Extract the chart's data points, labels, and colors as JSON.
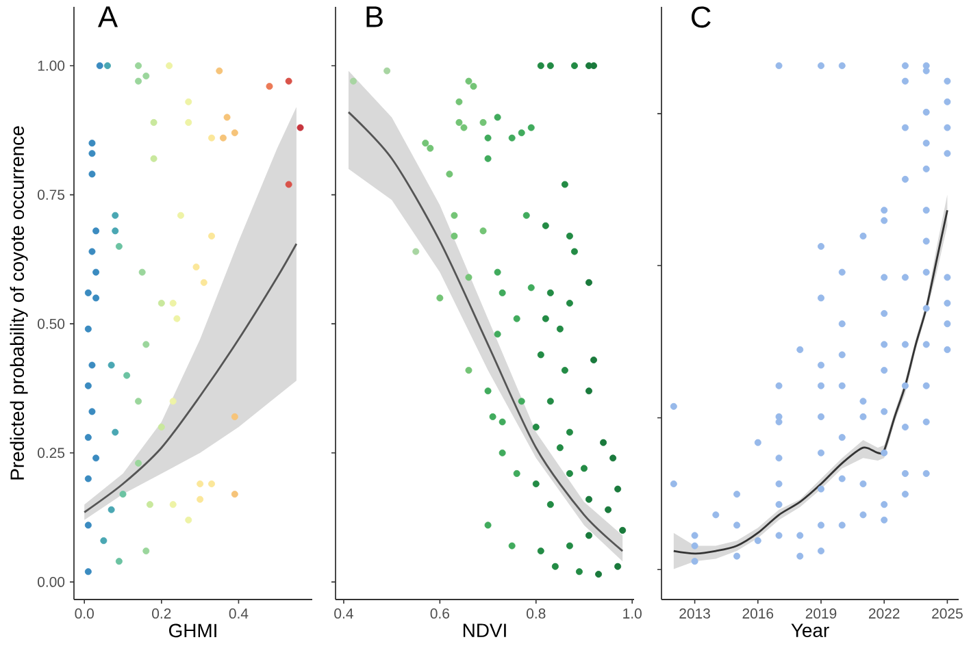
{
  "chart_data": [
    {
      "type": "scatter",
      "title": "A",
      "xlabel": "GHMI",
      "ylabel": "Predicted probability of coyote occurrence",
      "xlim": [
        -0.027,
        0.591
      ],
      "ylim": [
        -0.034,
        1.114
      ],
      "xticks": [
        {
          "value": 0,
          "label": "0.0"
        },
        0.2,
        0.4
      ],
      "yticks": [
        {
          "value": 0,
          "label": "0.00"
        },
        {
          "value": 0.25,
          "label": "0.25"
        },
        {
          "value": 0.5,
          "label": "0.50"
        },
        {
          "value": 0.75,
          "label": "0.75"
        },
        {
          "value": 1,
          "label": "1.00"
        }
      ],
      "series": [
        {
          "x": [
            0.04,
            0.06,
            0.14,
            0.16,
            0.14,
            0.22,
            0.35,
            0.48,
            0.53,
            0.56,
            0.53,
            0.37,
            0.39,
            0.36,
            0.33,
            0.27,
            0.27,
            0.18,
            0.18,
            0.02,
            0.02,
            0.02,
            0.03,
            0.02,
            0.03,
            0.01,
            0.03,
            0.01,
            0.08,
            0.09,
            0.08,
            0.25,
            0.15,
            0.2,
            0.29,
            0.33,
            0.31,
            0.24,
            0.23,
            0.02,
            0.01,
            0.02,
            0.07,
            0.11,
            0.16,
            0.23,
            0.2,
            0.14,
            0.3,
            0.33,
            0.39,
            0.39,
            0.3,
            0.27,
            0.23,
            0.01,
            0.01,
            0.01,
            0.01,
            0.03,
            0.05,
            0.09,
            0.1,
            0.14,
            0.17,
            0.16,
            0.08,
            0.07
          ],
          "values": [
            1.0,
            1.0,
            1.0,
            0.98,
            0.97,
            1.0,
            0.99,
            0.96,
            0.97,
            0.88,
            0.77,
            0.9,
            0.87,
            0.86,
            0.86,
            0.93,
            0.89,
            0.89,
            0.82,
            0.85,
            0.83,
            0.79,
            0.68,
            0.64,
            0.6,
            0.56,
            0.55,
            0.49,
            0.68,
            0.65,
            0.71,
            0.71,
            0.6,
            0.54,
            0.61,
            0.67,
            0.58,
            0.51,
            0.54,
            0.42,
            0.38,
            0.33,
            0.42,
            0.4,
            0.46,
            0.35,
            0.3,
            0.35,
            0.19,
            0.19,
            0.32,
            0.17,
            0.16,
            0.12,
            0.15,
            0.28,
            0.2,
            0.11,
            0.02,
            0.24,
            0.08,
            0.04,
            0.17,
            0.23,
            0.15,
            0.06,
            0.29,
            0.14
          ],
          "colors": [
            "#3b8bc0",
            "#4aa7b3",
            "#9bd69c",
            "#9bd69c",
            "#9bd69c",
            "#eef3a6",
            "#f6c47a",
            "#ec7a57",
            "#d9534a",
            "#c7363e",
            "#d9534a",
            "#f6c47a",
            "#f6c47a",
            "#f6c47a",
            "#fbe79a",
            "#eef3a6",
            "#eef3a6",
            "#c9e89d",
            "#c9e89d",
            "#3b8bc0",
            "#3b8bc0",
            "#3b8bc0",
            "#3b8bc0",
            "#3b8bc0",
            "#3b8bc0",
            "#3b8bc0",
            "#3b8bc0",
            "#3b8bc0",
            "#4aa7b3",
            "#6cc3a2",
            "#4aa7b3",
            "#eef3a6",
            "#9bd69c",
            "#c9e89d",
            "#fbe79a",
            "#fbe79a",
            "#fbe79a",
            "#eef3a6",
            "#eef3a6",
            "#3b8bc0",
            "#3b8bc0",
            "#3b8bc0",
            "#4aa7b3",
            "#6cc3a2",
            "#9bd69c",
            "#eef3a6",
            "#c9e89d",
            "#9bd69c",
            "#fbe79a",
            "#fbe79a",
            "#f6c47a",
            "#f6c47a",
            "#fbe79a",
            "#eef3a6",
            "#eef3a6",
            "#3b8bc0",
            "#3b8bc0",
            "#3b8bc0",
            "#3b8bc0",
            "#3b8bc0",
            "#4aa7b3",
            "#6cc3a2",
            "#6cc3a2",
            "#9bd69c",
            "#c9e89d",
            "#9bd69c",
            "#4aa7b3",
            "#4aa7b3"
          ]
        },
        {
          "type": "line",
          "color": "#555555",
          "x": [
            0,
            0.1,
            0.2,
            0.3,
            0.4,
            0.5,
            0.55
          ],
          "values": [
            0.135,
            0.19,
            0.26,
            0.36,
            0.47,
            0.59,
            0.655
          ],
          "lower": [
            0.12,
            0.17,
            0.21,
            0.25,
            0.3,
            0.36,
            0.39
          ],
          "upper": [
            0.15,
            0.21,
            0.31,
            0.47,
            0.66,
            0.84,
            0.92
          ]
        }
      ]
    },
    {
      "type": "scatter",
      "title": "B",
      "xlabel": "NDVI",
      "xlim": [
        0.383,
        1.004
      ],
      "ylim": [
        -0.034,
        1.114
      ],
      "xticks": [
        0.4,
        0.6,
        0.8,
        {
          "value": 1,
          "label": "1.0"
        }
      ],
      "yticks": [
        0,
        0.25,
        0.5,
        0.75,
        1
      ],
      "tick_labels": "x",
      "series": [
        {
          "x": [
            0.81,
            0.83,
            0.88,
            0.91,
            0.92,
            0.42,
            0.49,
            0.66,
            0.67,
            0.64,
            0.64,
            0.65,
            0.72,
            0.69,
            0.77,
            0.79,
            0.75,
            0.7,
            0.7,
            0.57,
            0.58,
            0.62,
            0.86,
            0.63,
            0.63,
            0.55,
            0.66,
            0.6,
            0.69,
            0.78,
            0.82,
            0.87,
            0.88,
            0.91,
            0.72,
            0.73,
            0.79,
            0.83,
            0.76,
            0.72,
            0.82,
            0.87,
            0.66,
            0.7,
            0.71,
            0.73,
            0.77,
            0.85,
            0.81,
            0.86,
            0.92,
            0.91,
            0.83,
            0.8,
            0.87,
            0.94,
            0.96,
            0.73,
            0.76,
            0.8,
            0.7,
            0.75,
            0.81,
            0.83,
            0.87,
            0.91,
            0.95,
            0.98,
            0.97,
            0.84,
            0.89,
            0.93,
            0.87,
            0.91,
            0.9,
            0.85,
            0.97
          ],
          "values": [
            1.0,
            1.0,
            1.0,
            1.0,
            1.0,
            0.97,
            0.99,
            0.97,
            0.96,
            0.93,
            0.89,
            0.88,
            0.9,
            0.89,
            0.87,
            0.88,
            0.86,
            0.86,
            0.82,
            0.85,
            0.84,
            0.79,
            0.77,
            0.71,
            0.67,
            0.64,
            0.59,
            0.55,
            0.68,
            0.71,
            0.69,
            0.67,
            0.64,
            0.58,
            0.6,
            0.56,
            0.57,
            0.56,
            0.51,
            0.48,
            0.51,
            0.54,
            0.41,
            0.37,
            0.32,
            0.31,
            0.35,
            0.49,
            0.44,
            0.41,
            0.43,
            0.37,
            0.35,
            0.3,
            0.29,
            0.27,
            0.24,
            0.25,
            0.21,
            0.19,
            0.11,
            0.07,
            0.06,
            0.15,
            0.21,
            0.16,
            0.14,
            0.1,
            0.03,
            0.03,
            0.02,
            0.015,
            0.07,
            0.09,
            0.22,
            0.26,
            0.18
          ],
          "colors": [
            "#238b45",
            "#238b45",
            "#238b45",
            "#1a7a3c",
            "#1a7a3c",
            "#a8d5a2",
            "#a8d5a2",
            "#74c476",
            "#74c476",
            "#74c476",
            "#74c476",
            "#74c476",
            "#41ab5d",
            "#74c476",
            "#41ab5d",
            "#41ab5d",
            "#41ab5d",
            "#41ab5d",
            "#41ab5d",
            "#74c476",
            "#74c476",
            "#74c476",
            "#238b45",
            "#74c476",
            "#74c476",
            "#a8d5a2",
            "#74c476",
            "#74c476",
            "#74c476",
            "#41ab5d",
            "#238b45",
            "#238b45",
            "#238b45",
            "#1a7a3c",
            "#41ab5d",
            "#41ab5d",
            "#41ab5d",
            "#238b45",
            "#41ab5d",
            "#41ab5d",
            "#238b45",
            "#238b45",
            "#74c476",
            "#41ab5d",
            "#41ab5d",
            "#41ab5d",
            "#41ab5d",
            "#238b45",
            "#238b45",
            "#238b45",
            "#1a7a3c",
            "#1a7a3c",
            "#238b45",
            "#238b45",
            "#238b45",
            "#1a7a3c",
            "#1a7a3c",
            "#41ab5d",
            "#41ab5d",
            "#238b45",
            "#41ab5d",
            "#41ab5d",
            "#238b45",
            "#238b45",
            "#238b45",
            "#1a7a3c",
            "#1a7a3c",
            "#1a7a3c",
            "#1a7a3c",
            "#238b45",
            "#238b45",
            "#1a7a3c",
            "#238b45",
            "#1a7a3c",
            "#238b45",
            "#238b45",
            "#1a7a3c"
          ]
        },
        {
          "type": "line",
          "color": "#555555",
          "x": [
            0.41,
            0.5,
            0.6,
            0.7,
            0.8,
            0.9,
            0.98
          ],
          "values": [
            0.91,
            0.82,
            0.66,
            0.46,
            0.26,
            0.13,
            0.06
          ],
          "lower": [
            0.8,
            0.74,
            0.6,
            0.41,
            0.24,
            0.11,
            0.04
          ],
          "upper": [
            0.99,
            0.9,
            0.73,
            0.51,
            0.29,
            0.155,
            0.09
          ]
        }
      ]
    },
    {
      "type": "scatter",
      "title": "C",
      "xlabel": "Year",
      "xlim": [
        2011.42,
        2025.54
      ],
      "ylim": [
        -0.034,
        1.114
      ],
      "xticks": [
        2013,
        2016,
        2019,
        2022,
        2025
      ],
      "yticks": [
        {
          "value": 0.024,
          "label": null
        },
        {
          "value": 0.318,
          "label": null
        },
        {
          "value": 0.613,
          "label": null
        },
        {
          "value": 0.907,
          "label": null
        }
      ],
      "tick_labels": "x",
      "series": [
        {
          "color": "#97b9ea",
          "x": [
            2012,
            2012,
            2013,
            2013,
            2013,
            2014,
            2015,
            2015,
            2015,
            2016,
            2016,
            2017,
            2017,
            2017,
            2017,
            2017,
            2017,
            2017,
            2017,
            2018,
            2018,
            2018,
            2019,
            2019,
            2019,
            2019,
            2019,
            2019,
            2019,
            2019,
            2019,
            2019,
            2020,
            2020,
            2020,
            2020,
            2020,
            2020,
            2020,
            2020,
            2021,
            2021,
            2021,
            2021,
            2021,
            2022,
            2022,
            2022,
            2022,
            2022,
            2022,
            2022,
            2022,
            2022,
            2022,
            2023,
            2023,
            2023,
            2023,
            2023,
            2023,
            2023,
            2023,
            2023,
            2023,
            2024,
            2024,
            2024,
            2024,
            2024,
            2024,
            2024,
            2024,
            2024,
            2024,
            2024,
            2024,
            2024,
            2025,
            2025,
            2025,
            2025,
            2025,
            2025,
            2025,
            2025
          ],
          "values": [
            0.34,
            0.19,
            0.09,
            0.07,
            0.04,
            0.13,
            0.17,
            0.11,
            0.05,
            0.27,
            0.08,
            1.0,
            0.38,
            0.32,
            0.31,
            0.24,
            0.19,
            0.15,
            0.09,
            0.45,
            0.09,
            0.05,
            1.0,
            0.65,
            0.55,
            0.42,
            0.38,
            0.32,
            0.25,
            0.18,
            0.11,
            0.06,
            1.0,
            0.6,
            0.5,
            0.44,
            0.38,
            0.28,
            0.2,
            0.11,
            0.67,
            0.35,
            0.32,
            0.19,
            0.13,
            0.72,
            0.7,
            0.59,
            0.52,
            0.46,
            0.41,
            0.33,
            0.25,
            0.15,
            0.12,
            1.0,
            0.97,
            0.88,
            0.78,
            0.59,
            0.46,
            0.38,
            0.3,
            0.21,
            0.17,
            1.0,
            0.99,
            0.91,
            0.85,
            0.8,
            0.72,
            0.66,
            0.6,
            0.53,
            0.46,
            0.38,
            0.31,
            0.21,
            0.97,
            0.93,
            0.88,
            0.83,
            0.59,
            0.54,
            0.5,
            0.45
          ]
        },
        {
          "type": "line",
          "color": "#333333",
          "x": [
            2012,
            2013,
            2014,
            2015,
            2016,
            2017,
            2018,
            2019,
            2020,
            2021,
            2021.7,
            2022,
            2022.5,
            2023,
            2023.5,
            2024,
            2024.5,
            2025
          ],
          "values": [
            0.06,
            0.055,
            0.06,
            0.07,
            0.095,
            0.13,
            0.155,
            0.19,
            0.23,
            0.26,
            0.25,
            0.255,
            0.32,
            0.38,
            0.46,
            0.53,
            0.625,
            0.72
          ],
          "lower": [
            0.025,
            0.04,
            0.045,
            0.06,
            0.085,
            0.12,
            0.145,
            0.18,
            0.22,
            0.24,
            0.235,
            0.24,
            0.31,
            0.365,
            0.45,
            0.52,
            0.6,
            0.69
          ],
          "upper": [
            0.095,
            0.07,
            0.07,
            0.08,
            0.105,
            0.14,
            0.16,
            0.2,
            0.24,
            0.275,
            0.26,
            0.265,
            0.33,
            0.39,
            0.47,
            0.54,
            0.65,
            0.75
          ]
        }
      ]
    }
  ]
}
